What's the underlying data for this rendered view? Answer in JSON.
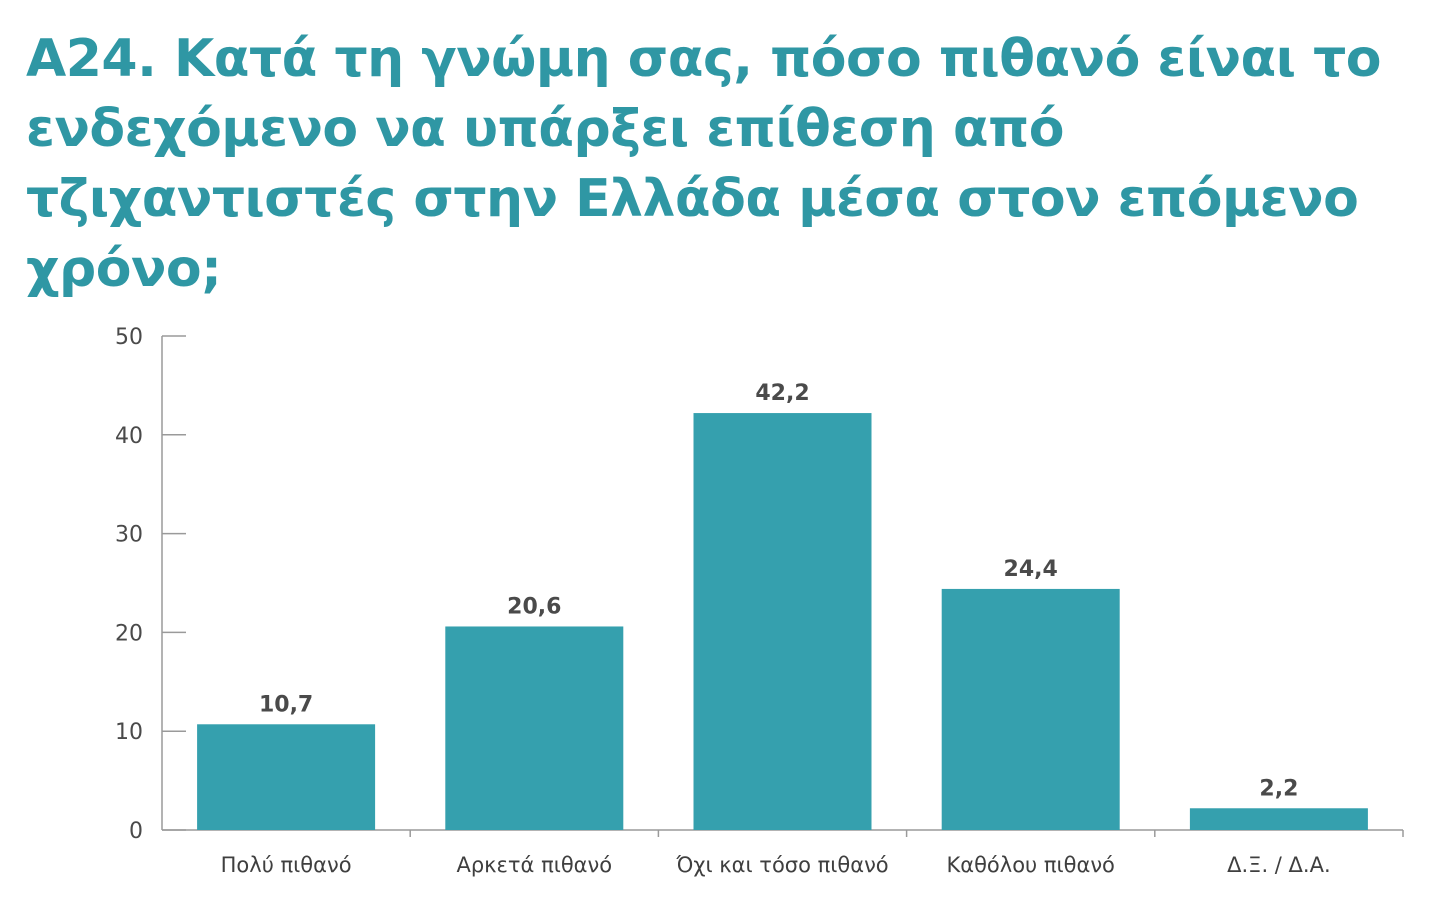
{
  "chart_data": {
    "type": "bar",
    "title": "Α24. Κατά τη γνώμη σας, πόσο πιθανό είναι το ενδεχόμενο να υπάρξει επίθεση από τζιχαντιστές στην Ελλάδα μέσα στον επόμενο χρόνο;",
    "categories": [
      "Πολύ πιθανό",
      "Αρκετά πιθανό",
      "Όχι και τόσο πιθανό",
      "Καθόλου πιθανό",
      "Δ.Ξ. / Δ.Α."
    ],
    "values": [
      10.7,
      20.6,
      42.2,
      24.4,
      2.2
    ],
    "value_labels": [
      "10,7",
      "20,6",
      "42,2",
      "24,4",
      "2,2"
    ],
    "yticks": [
      "0",
      "10",
      "20",
      "30",
      "40",
      "50"
    ],
    "ylim": [
      0,
      50
    ],
    "xlabel": "",
    "ylabel": "",
    "grid": false,
    "legend": "none",
    "colors": {
      "bar": "#35a0ae",
      "title": "#2f97a4",
      "axis": "#9a9a9a",
      "text": "#4a4a4a"
    }
  }
}
